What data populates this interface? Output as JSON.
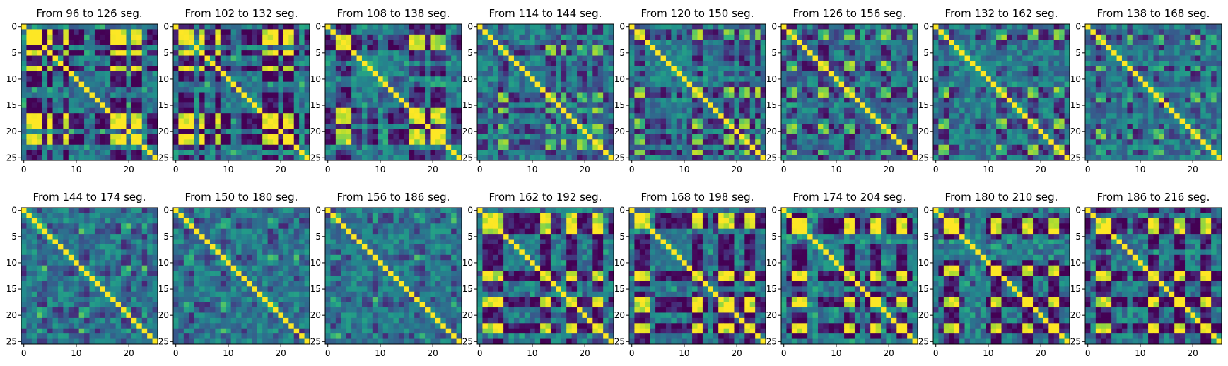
{
  "chart_data": {
    "type": "heatmap",
    "layout": {
      "rows": 2,
      "cols": 8
    },
    "matrix_size": 26,
    "colormap": "viridis",
    "value_range": [
      0,
      1
    ],
    "grid": false,
    "xticks": [
      0,
      10,
      20
    ],
    "yticks": [
      0,
      5,
      10,
      15,
      20,
      25
    ],
    "panels": [
      {
        "title": "From 96 to 126 seg.",
        "pattern_strength": 1.0,
        "block_members": [
          1,
          2,
          3,
          5,
          8,
          17,
          18,
          19,
          21,
          22
        ]
      },
      {
        "title": "From 102 to 132 seg.",
        "pattern_strength": 1.0,
        "block_members": [
          1,
          2,
          3,
          5,
          8,
          17,
          18,
          19,
          21,
          22
        ]
      },
      {
        "title": "From 108 to 138 seg.",
        "pattern_strength": 0.8,
        "block_members": [
          2,
          3,
          4,
          16,
          17,
          18,
          20,
          21,
          22
        ]
      },
      {
        "title": "From 114 to 144 seg.",
        "pattern_strength": 0.55,
        "block_members": [
          4,
          5,
          13,
          14,
          16,
          19,
          20,
          22,
          23
        ]
      },
      {
        "title": "From 120 to 150 seg.",
        "pattern_strength": 0.6,
        "block_members": [
          1,
          2,
          12,
          13,
          18,
          19,
          21,
          22,
          24
        ]
      },
      {
        "title": "From 126 to 156 seg.",
        "pattern_strength": 0.6,
        "block_members": [
          1,
          2,
          7,
          8,
          12,
          13,
          19,
          20,
          24
        ]
      },
      {
        "title": "From 132 to 162 seg.",
        "pattern_strength": 0.55,
        "block_members": [
          1,
          2,
          12,
          13,
          18,
          19,
          23,
          24
        ]
      },
      {
        "title": "From 138 to 168 seg.",
        "pattern_strength": 0.5,
        "block_members": [
          2,
          3,
          8,
          13,
          14,
          20,
          21,
          24
        ]
      },
      {
        "title": "From 144 to 174 seg.",
        "pattern_strength": 0.35,
        "block_members": [
          3,
          4,
          11,
          12,
          19,
          20,
          23
        ]
      },
      {
        "title": "From 150 to 180 seg.",
        "pattern_strength": 0.35,
        "block_members": [
          2,
          3,
          9,
          10,
          18,
          19,
          23
        ]
      },
      {
        "title": "From 156 to 186 seg.",
        "pattern_strength": 0.3,
        "block_members": [
          1,
          2,
          9,
          17,
          18,
          24
        ]
      },
      {
        "title": "From 162 to 192 seg.",
        "pattern_strength": 0.9,
        "block_members": [
          1,
          2,
          3,
          4,
          12,
          13,
          17,
          18,
          22,
          23
        ]
      },
      {
        "title": "From 168 to 198 seg.",
        "pattern_strength": 0.9,
        "block_members": [
          1,
          2,
          3,
          12,
          13,
          17,
          18,
          19,
          22,
          23
        ]
      },
      {
        "title": "From 174 to 204 seg.",
        "pattern_strength": 1.0,
        "block_members": [
          2,
          3,
          4,
          12,
          13,
          17,
          18,
          22,
          23
        ]
      },
      {
        "title": "From 180 to 210 seg.",
        "pattern_strength": 0.95,
        "block_members": [
          2,
          3,
          4,
          11,
          12,
          17,
          18,
          22,
          23
        ]
      },
      {
        "title": "From 186 to 216 seg.",
        "pattern_strength": 0.95,
        "block_members": [
          2,
          3,
          4,
          12,
          13,
          17,
          18,
          22,
          23
        ]
      }
    ]
  }
}
